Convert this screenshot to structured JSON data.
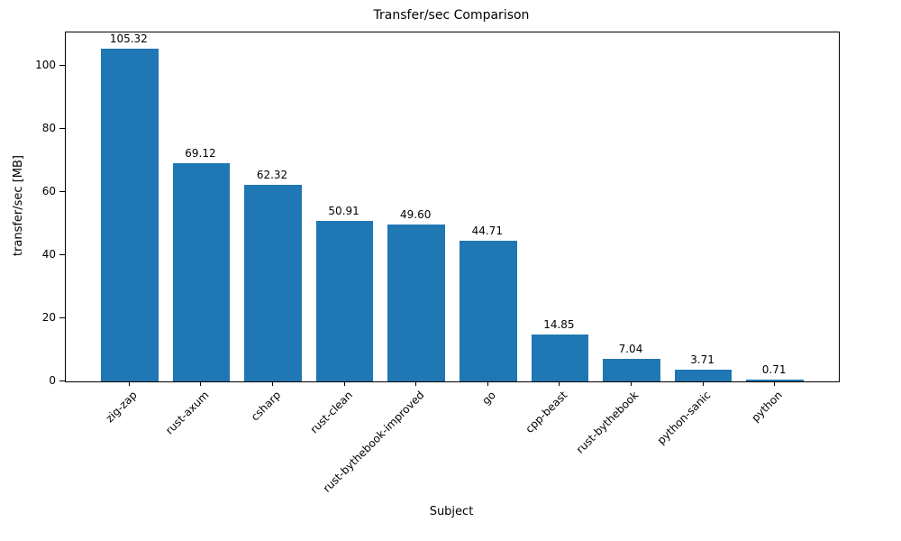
{
  "chart_data": {
    "type": "bar",
    "title": "Transfer/sec Comparison",
    "xlabel": "Subject",
    "ylabel": "transfer/sec [MB]",
    "categories": [
      "zig-zap",
      "rust-axum",
      "csharp",
      "rust-clean",
      "rust-bythebook-improved",
      "go",
      "cpp-beast",
      "rust-bythebook",
      "python-sanic",
      "python"
    ],
    "values": [
      105.32,
      69.12,
      62.32,
      50.91,
      49.6,
      44.71,
      14.85,
      7.04,
      3.71,
      0.71
    ],
    "value_labels": [
      "105.32",
      "69.12",
      "62.32",
      "50.91",
      "49.60",
      "44.71",
      "14.85",
      "7.04",
      "3.71",
      "0.71"
    ],
    "bar_color": "#1f77b4",
    "ylim": [
      0,
      110.6
    ],
    "yticks": [
      0,
      20,
      40,
      60,
      80,
      100
    ],
    "grid": false,
    "legend": null,
    "x_tick_rotation": 45
  }
}
